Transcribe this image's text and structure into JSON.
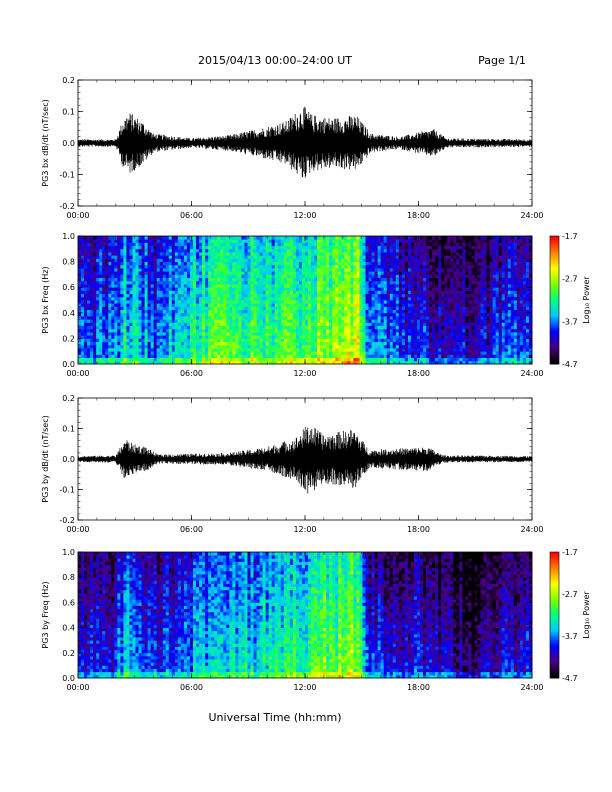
{
  "header": {
    "date_range": "2015/04/13  00:00–24:00 UT",
    "page": "Page 1/1"
  },
  "xaxis": {
    "label": "Universal Time (hh:mm)",
    "ticks": [
      "00:00",
      "06:00",
      "12:00",
      "18:00",
      "24:00"
    ]
  },
  "colorbar": {
    "label": "Log₁₀ Power",
    "ticks": [
      "-1.7",
      "-2.7",
      "-3.7",
      "-4.7"
    ],
    "colors": [
      "#000000",
      "#4b0082",
      "#0000ff",
      "#00c8ff",
      "#00ff80",
      "#80ff00",
      "#ffff00",
      "#ff8000",
      "#ff0000"
    ]
  },
  "chart_data": [
    {
      "type": "line",
      "ylabel": "PG3 bx dB/dt (nT/sec)",
      "xlim": [
        0,
        24
      ],
      "ylim": [
        -0.2,
        0.2
      ],
      "yticks": [
        "0.2",
        "0.1",
        "0.0",
        "-0.1",
        "-0.2"
      ],
      "envelope": [
        {
          "t": 0.0,
          "amp": 0.012
        },
        {
          "t": 2.0,
          "amp": 0.012
        },
        {
          "t": 2.4,
          "amp": 0.08
        },
        {
          "t": 2.7,
          "amp": 0.1
        },
        {
          "t": 3.4,
          "amp": 0.07
        },
        {
          "t": 4.0,
          "amp": 0.03
        },
        {
          "t": 6.0,
          "amp": 0.015
        },
        {
          "t": 8.0,
          "amp": 0.025
        },
        {
          "t": 9.5,
          "amp": 0.045
        },
        {
          "t": 11.0,
          "amp": 0.07
        },
        {
          "t": 11.9,
          "amp": 0.12
        },
        {
          "t": 12.4,
          "amp": 0.09
        },
        {
          "t": 13.5,
          "amp": 0.08
        },
        {
          "t": 14.7,
          "amp": 0.09
        },
        {
          "t": 15.5,
          "amp": 0.03
        },
        {
          "t": 17.0,
          "amp": 0.02
        },
        {
          "t": 18.8,
          "amp": 0.045
        },
        {
          "t": 19.5,
          "amp": 0.015
        },
        {
          "t": 24.0,
          "amp": 0.012
        }
      ]
    },
    {
      "type": "heatmap",
      "ylabel": "PG3 bx Freq (Hz)",
      "xlim": [
        0,
        24
      ],
      "ylim": [
        0.0,
        1.0
      ],
      "yticks": [
        "1.0",
        "0.8",
        "0.6",
        "0.4",
        "0.2",
        "0.0"
      ],
      "clim": [
        -4.7,
        -1.7
      ],
      "activity": [
        {
          "t": 0.0,
          "p": -3.8
        },
        {
          "t": 2.0,
          "p": -3.7
        },
        {
          "t": 2.6,
          "p": -3.3
        },
        {
          "t": 4.0,
          "p": -3.7
        },
        {
          "t": 5.5,
          "p": -3.3
        },
        {
          "t": 7.5,
          "p": -3.0
        },
        {
          "t": 9.0,
          "p": -3.1
        },
        {
          "t": 11.0,
          "p": -3.0
        },
        {
          "t": 13.0,
          "p": -2.8
        },
        {
          "t": 14.8,
          "p": -2.6
        },
        {
          "t": 15.3,
          "p": -3.6
        },
        {
          "t": 17.0,
          "p": -3.8
        },
        {
          "t": 19.5,
          "p": -4.0
        },
        {
          "t": 21.0,
          "p": -4.2
        },
        {
          "t": 22.5,
          "p": -3.9
        },
        {
          "t": 24.0,
          "p": -3.8
        }
      ]
    },
    {
      "type": "line",
      "ylabel": "PG3 by dB/dt (nT/sec)",
      "xlim": [
        0,
        24
      ],
      "ylim": [
        -0.2,
        0.2
      ],
      "yticks": [
        "0.2",
        "0.1",
        "0.0",
        "-0.1",
        "-0.2"
      ],
      "envelope": [
        {
          "t": 0.0,
          "amp": 0.01
        },
        {
          "t": 2.0,
          "amp": 0.012
        },
        {
          "t": 2.5,
          "amp": 0.07
        },
        {
          "t": 2.9,
          "amp": 0.05
        },
        {
          "t": 3.6,
          "amp": 0.04
        },
        {
          "t": 4.2,
          "amp": 0.015
        },
        {
          "t": 8.0,
          "amp": 0.02
        },
        {
          "t": 10.0,
          "amp": 0.04
        },
        {
          "t": 11.5,
          "amp": 0.07
        },
        {
          "t": 12.2,
          "amp": 0.12
        },
        {
          "t": 13.0,
          "amp": 0.08
        },
        {
          "t": 14.6,
          "amp": 0.1
        },
        {
          "t": 15.4,
          "amp": 0.03
        },
        {
          "t": 18.5,
          "amp": 0.04
        },
        {
          "t": 19.3,
          "amp": 0.012
        },
        {
          "t": 24.0,
          "amp": 0.01
        }
      ]
    },
    {
      "type": "heatmap",
      "ylabel": "PG3 by Freq (Hz)",
      "xlim": [
        0,
        24
      ],
      "ylim": [
        0.0,
        1.0
      ],
      "yticks": [
        "1.0",
        "0.8",
        "0.6",
        "0.4",
        "0.2",
        "0.0"
      ],
      "clim": [
        -4.7,
        -1.7
      ],
      "activity": [
        {
          "t": 0.0,
          "p": -4.0
        },
        {
          "t": 2.0,
          "p": -3.9
        },
        {
          "t": 2.6,
          "p": -3.4
        },
        {
          "t": 4.0,
          "p": -3.9
        },
        {
          "t": 6.0,
          "p": -3.6
        },
        {
          "t": 8.0,
          "p": -3.4
        },
        {
          "t": 10.0,
          "p": -3.3
        },
        {
          "t": 12.0,
          "p": -3.1
        },
        {
          "t": 13.5,
          "p": -2.9
        },
        {
          "t": 14.8,
          "p": -2.8
        },
        {
          "t": 15.3,
          "p": -3.8
        },
        {
          "t": 17.0,
          "p": -3.9
        },
        {
          "t": 19.5,
          "p": -4.1
        },
        {
          "t": 21.0,
          "p": -4.4
        },
        {
          "t": 22.5,
          "p": -4.0
        },
        {
          "t": 24.0,
          "p": -3.9
        }
      ]
    }
  ]
}
